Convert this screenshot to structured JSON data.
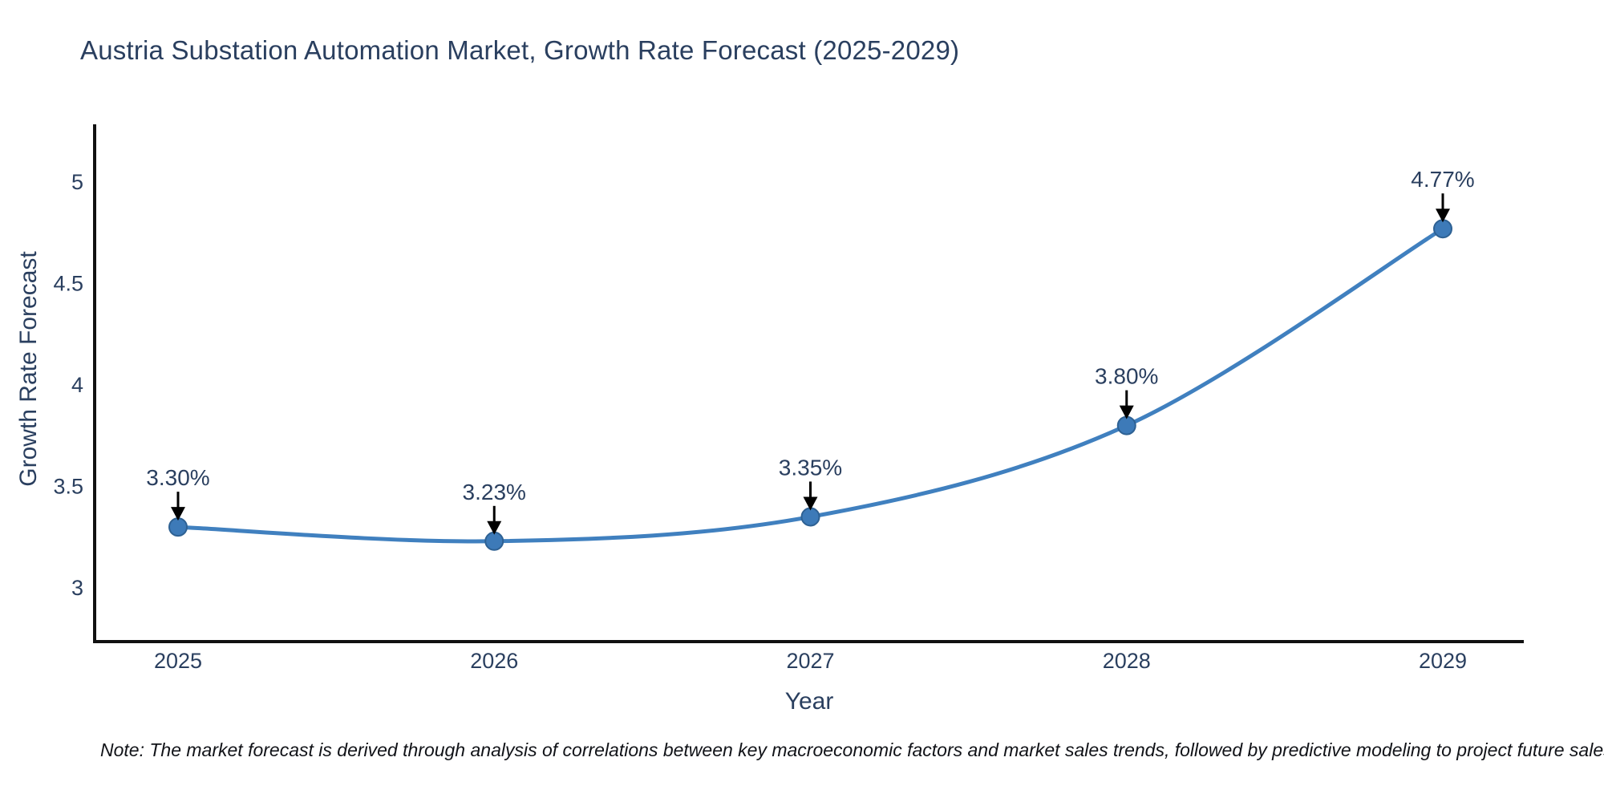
{
  "title": "Austria Substation Automation Market, Growth Rate Forecast (2025-2029)",
  "note": "Note: The market forecast is derived through analysis of correlations between key macroeconomic factors and market sales trends, followed by predictive modeling to project future sales",
  "chart_data": {
    "type": "line",
    "title": "Austria Substation Automation Market, Growth Rate Forecast (2025-2029)",
    "categories": [
      "2025",
      "2026",
      "2027",
      "2028",
      "2029"
    ],
    "series": [
      {
        "name": "Growth Rate Forecast",
        "values": [
          3.3,
          3.23,
          3.35,
          3.8,
          4.77
        ]
      }
    ],
    "point_labels": [
      "3.30%",
      "3.23%",
      "3.35%",
      "3.80%",
      "4.77%"
    ],
    "xlabel": "Year",
    "ylabel": "Growth Rate Forecast",
    "yticks": [
      3,
      3.5,
      4,
      4.5,
      5
    ],
    "ytick_labels": [
      "3",
      "3.5",
      "4",
      "4.5",
      "5"
    ],
    "ylim": [
      2.73,
      5.28
    ],
    "grid": false,
    "legend": false,
    "line_style": "spline",
    "colors": {
      "line": "#4080bf",
      "marker_fill": "#3d7ab8",
      "marker_edge": "#2e6193",
      "axis": "#111111",
      "text": "#2a3f5f",
      "annotation_arrow": "#000000"
    }
  }
}
